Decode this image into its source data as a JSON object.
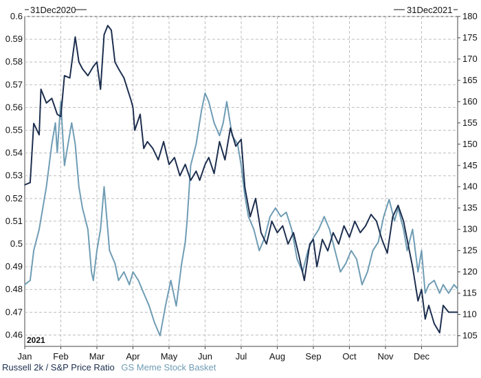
{
  "chart_data": {
    "type": "line",
    "start_label": "31Dec2020",
    "end_label": "31Dec2021",
    "year_label": "2021",
    "x_ticks": [
      "Jan",
      "Feb",
      "Mar",
      "Apr",
      "May",
      "Jun",
      "Jul",
      "Aug",
      "Sep",
      "Oct",
      "Nov",
      "Dec"
    ],
    "x_range": [
      0,
      12
    ],
    "grid": true,
    "left_axis": {
      "range": [
        0.455,
        0.6
      ],
      "ticks": [
        "0.6",
        "0.59",
        "0.58",
        "0.57",
        "0.56",
        "0.55",
        "0.54",
        "0.53",
        "0.52",
        "0.51",
        "0.5",
        "0.49",
        "0.48",
        "0.47",
        "0.46"
      ]
    },
    "right_axis": {
      "range": [
        102.5,
        180
      ],
      "ticks": [
        "180",
        "175",
        "170",
        "165",
        "160",
        "155",
        "150",
        "145",
        "140",
        "135",
        "130",
        "125",
        "120",
        "115",
        "110",
        "105"
      ]
    },
    "series": [
      {
        "name": "Russell 2k / S&P Price Ratio",
        "axis": "left",
        "color": "#1c2e4e",
        "x": [
          0,
          0.15,
          0.25,
          0.4,
          0.45,
          0.6,
          0.75,
          0.9,
          1.0,
          1.1,
          1.25,
          1.4,
          1.5,
          1.6,
          1.75,
          1.9,
          2.0,
          2.1,
          2.2,
          2.3,
          2.4,
          2.5,
          2.6,
          2.75,
          2.85,
          2.95,
          3.0,
          3.05,
          3.2,
          3.3,
          3.4,
          3.55,
          3.7,
          3.85,
          4.0,
          4.15,
          4.3,
          4.45,
          4.6,
          4.75,
          4.85,
          5.0,
          5.1,
          5.25,
          5.4,
          5.55,
          5.7,
          5.85,
          6.0,
          6.1,
          6.25,
          6.4,
          6.55,
          6.7,
          6.85,
          7.0,
          7.15,
          7.3,
          7.45,
          7.6,
          7.75,
          7.9,
          8.0,
          8.1,
          8.25,
          8.4,
          8.55,
          8.7,
          8.85,
          9.0,
          9.15,
          9.3,
          9.45,
          9.6,
          9.75,
          9.9,
          10.05,
          10.2,
          10.35,
          10.5,
          10.6,
          10.75,
          10.9,
          11.0,
          11.1,
          11.2,
          11.35,
          11.5,
          11.6,
          11.75,
          11.9,
          12.0
        ],
        "values": [
          0.526,
          0.527,
          0.553,
          0.548,
          0.568,
          0.562,
          0.564,
          0.557,
          0.556,
          0.574,
          0.573,
          0.591,
          0.58,
          0.577,
          0.574,
          0.578,
          0.58,
          0.568,
          0.592,
          0.596,
          0.594,
          0.58,
          0.577,
          0.573,
          0.568,
          0.563,
          0.56,
          0.55,
          0.557,
          0.542,
          0.545,
          0.542,
          0.537,
          0.545,
          0.535,
          0.538,
          0.53,
          0.535,
          0.528,
          0.532,
          0.528,
          0.535,
          0.538,
          0.531,
          0.545,
          0.537,
          0.551,
          0.543,
          0.546,
          0.525,
          0.512,
          0.52,
          0.505,
          0.5,
          0.51,
          0.505,
          0.508,
          0.5,
          0.505,
          0.495,
          0.484,
          0.5,
          0.502,
          0.49,
          0.502,
          0.497,
          0.505,
          0.5,
          0.508,
          0.503,
          0.51,
          0.505,
          0.508,
          0.513,
          0.51,
          0.502,
          0.496,
          0.512,
          0.517,
          0.51,
          0.502,
          0.49,
          0.475,
          0.48,
          0.467,
          0.473,
          0.465,
          0.461,
          0.473,
          0.47,
          0.47,
          0.47
        ]
      },
      {
        "name": "GS Meme Stock Basket",
        "axis": "right",
        "color": "#6e9cb4",
        "x": [
          0,
          0.15,
          0.25,
          0.4,
          0.5,
          0.6,
          0.75,
          0.85,
          0.9,
          1.0,
          1.1,
          1.2,
          1.3,
          1.4,
          1.5,
          1.6,
          1.75,
          1.85,
          1.9,
          2.0,
          2.1,
          2.2,
          2.35,
          2.5,
          2.6,
          2.75,
          2.9,
          3.0,
          3.15,
          3.3,
          3.45,
          3.6,
          3.75,
          3.9,
          4.05,
          4.2,
          4.35,
          4.45,
          4.5,
          4.6,
          4.75,
          4.9,
          5.0,
          5.1,
          5.25,
          5.4,
          5.5,
          5.6,
          5.75,
          5.9,
          6.0,
          6.1,
          6.2,
          6.35,
          6.5,
          6.65,
          6.8,
          6.95,
          7.1,
          7.25,
          7.4,
          7.55,
          7.7,
          7.85,
          8.0,
          8.15,
          8.3,
          8.45,
          8.6,
          8.75,
          8.9,
          9.05,
          9.2,
          9.35,
          9.5,
          9.65,
          9.8,
          9.95,
          10.1,
          10.25,
          10.35,
          10.5,
          10.6,
          10.75,
          10.9,
          11.0,
          11.1,
          11.2,
          11.35,
          11.5,
          11.6,
          11.75,
          11.9,
          12.0
        ],
        "values": [
          117,
          118,
          125,
          130,
          135,
          140,
          150,
          155,
          148,
          160,
          145,
          150,
          155,
          150,
          140,
          135,
          130,
          120,
          118,
          125,
          130,
          140,
          125,
          122,
          118,
          120,
          117,
          120,
          118,
          115,
          112,
          108,
          105,
          112,
          118,
          112,
          122,
          127,
          132,
          145,
          150,
          158,
          162,
          160,
          155,
          152,
          155,
          160,
          152,
          150,
          145,
          138,
          133,
          130,
          125,
          128,
          133,
          135,
          133,
          134,
          130,
          123,
          120,
          125,
          128,
          130,
          133,
          130,
          125,
          120,
          122,
          125,
          123,
          117,
          120,
          125,
          127,
          133,
          137,
          132,
          135,
          130,
          125,
          130,
          120,
          125,
          115,
          117,
          118,
          115,
          117,
          115,
          117,
          116
        ]
      }
    ]
  }
}
